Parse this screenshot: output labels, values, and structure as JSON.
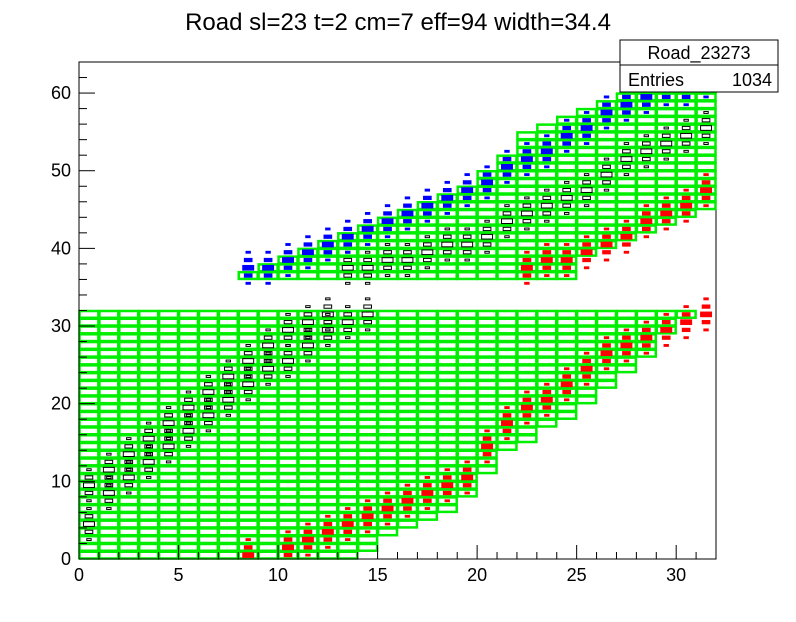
{
  "chart_data": {
    "type": "heatmap",
    "title": "Road sl=23 t=2 cm=7 eff=94 width=34.4",
    "xlim": [
      0,
      32
    ],
    "ylim": [
      0,
      64
    ],
    "x_ticks": [
      0,
      5,
      10,
      15,
      20,
      25,
      30
    ],
    "y_ticks": [
      0,
      10,
      20,
      30,
      40,
      50,
      60
    ],
    "x_tick_labels": [
      "0",
      "5",
      "10",
      "15",
      "20",
      "25",
      "30"
    ],
    "y_tick_labels": [
      "0",
      "10",
      "20",
      "30",
      "40",
      "50",
      "60"
    ],
    "legend": {
      "name": "Road_23273",
      "entries_label": "Entries",
      "entries_value": "1034",
      "position": "top-right"
    },
    "colors": {
      "road": "#00ee00",
      "hits": "#000000",
      "blue_hits": "#0000ff",
      "red_hits": "#ff0000"
    },
    "road_lower": {
      "ymin": 0,
      "ymax": 32,
      "row_extents": [
        [
          0,
          14
        ],
        [
          0,
          15
        ],
        [
          0,
          15
        ],
        [
          0,
          16
        ],
        [
          0,
          17
        ],
        [
          0,
          18
        ],
        [
          0,
          19
        ],
        [
          0,
          19
        ],
        [
          0,
          20
        ],
        [
          0,
          20
        ],
        [
          0,
          20
        ],
        [
          0,
          21
        ],
        [
          0,
          21
        ],
        [
          0,
          21
        ],
        [
          0,
          22
        ],
        [
          0,
          23
        ],
        [
          0,
          23
        ],
        [
          0,
          24
        ],
        [
          0,
          25
        ],
        [
          0,
          25
        ],
        [
          0,
          26
        ],
        [
          0,
          26
        ],
        [
          0,
          27
        ],
        [
          0,
          27
        ],
        [
          0,
          28
        ],
        [
          0,
          28
        ],
        [
          0,
          29
        ],
        [
          0,
          29
        ],
        [
          0,
          29
        ],
        [
          0,
          30
        ],
        [
          0,
          30
        ],
        [
          0,
          31
        ]
      ]
    },
    "road_upper": {
      "ymin": 36,
      "ymax": 61,
      "row_extents": [
        [
          8,
          25
        ],
        [
          9,
          25
        ],
        [
          10,
          25
        ],
        [
          11,
          26
        ],
        [
          12,
          27
        ],
        [
          13,
          28
        ],
        [
          14,
          29
        ],
        [
          15,
          30
        ],
        [
          16,
          31
        ],
        [
          17,
          32
        ],
        [
          18,
          32
        ],
        [
          19,
          32
        ],
        [
          20,
          32
        ],
        [
          20,
          32
        ],
        [
          21,
          32
        ],
        [
          21,
          32
        ],
        [
          22,
          32
        ],
        [
          22,
          32
        ],
        [
          22,
          32
        ],
        [
          23,
          32
        ],
        [
          24,
          32
        ],
        [
          25,
          32
        ],
        [
          26,
          32
        ],
        [
          27,
          32
        ],
        [
          28,
          32
        ]
      ]
    },
    "hit_bands": [
      {
        "name": "track-1",
        "type": "black",
        "points": [
          [
            0,
            4
          ],
          [
            1,
            8
          ],
          [
            2,
            10
          ],
          [
            3,
            12
          ],
          [
            4,
            14
          ],
          [
            5,
            16
          ],
          [
            6,
            18
          ],
          [
            7,
            20
          ],
          [
            8,
            22
          ],
          [
            9,
            24
          ],
          [
            10,
            25
          ],
          [
            11,
            27
          ],
          [
            12,
            29
          ],
          [
            13,
            30
          ],
          [
            14,
            31
          ]
        ]
      },
      {
        "name": "track-2",
        "type": "black",
        "points": [
          [
            0,
            9
          ],
          [
            1,
            11
          ],
          [
            2,
            13
          ],
          [
            3,
            15
          ],
          [
            4,
            17
          ],
          [
            5,
            19
          ],
          [
            6,
            21
          ],
          [
            7,
            23
          ],
          [
            8,
            25
          ],
          [
            9,
            27
          ],
          [
            10,
            29
          ],
          [
            11,
            30
          ],
          [
            12,
            31
          ]
        ]
      },
      {
        "name": "track-upper",
        "type": "black",
        "points": [
          [
            13,
            37
          ],
          [
            14,
            37
          ],
          [
            15,
            38
          ],
          [
            16,
            38
          ],
          [
            17,
            39
          ],
          [
            18,
            40
          ],
          [
            19,
            40
          ],
          [
            20,
            41
          ],
          [
            21,
            43
          ],
          [
            22,
            44
          ],
          [
            23,
            45
          ],
          [
            24,
            46
          ],
          [
            25,
            47
          ],
          [
            26,
            49
          ],
          [
            27,
            51
          ],
          [
            28,
            52
          ],
          [
            29,
            53
          ],
          [
            30,
            54
          ],
          [
            31,
            55
          ]
        ]
      },
      {
        "name": "track-blue",
        "type": "blue",
        "points": [
          [
            8,
            37
          ],
          [
            9,
            37
          ],
          [
            10,
            38
          ],
          [
            11,
            39
          ],
          [
            12,
            40
          ],
          [
            13,
            41
          ],
          [
            14,
            42
          ],
          [
            15,
            43
          ],
          [
            16,
            44
          ],
          [
            17,
            45
          ],
          [
            18,
            46
          ],
          [
            19,
            47
          ],
          [
            20,
            48
          ],
          [
            21,
            50
          ],
          [
            22,
            51
          ],
          [
            23,
            52
          ],
          [
            24,
            54
          ],
          [
            25,
            55
          ],
          [
            26,
            57
          ],
          [
            27,
            58
          ],
          [
            28,
            59
          ],
          [
            29,
            60
          ],
          [
            30,
            60
          ],
          [
            31,
            61
          ]
        ]
      },
      {
        "name": "track-red-lower",
        "type": "red",
        "points": [
          [
            8,
            0
          ],
          [
            10,
            1
          ],
          [
            11,
            2
          ],
          [
            12,
            3
          ],
          [
            13,
            4
          ],
          [
            14,
            5
          ],
          [
            15,
            6
          ],
          [
            16,
            7
          ],
          [
            17,
            8
          ],
          [
            18,
            9
          ],
          [
            19,
            10
          ],
          [
            20,
            14
          ],
          [
            21,
            17
          ],
          [
            22,
            19
          ],
          [
            23,
            20
          ],
          [
            24,
            22
          ],
          [
            25,
            24
          ],
          [
            26,
            26
          ],
          [
            27,
            27
          ],
          [
            28,
            28
          ],
          [
            29,
            29
          ],
          [
            30,
            30
          ],
          [
            31,
            31
          ]
        ]
      },
      {
        "name": "track-red-upper",
        "type": "red",
        "points": [
          [
            22,
            37
          ],
          [
            23,
            38
          ],
          [
            24,
            38
          ],
          [
            25,
            39
          ],
          [
            26,
            40
          ],
          [
            27,
            41
          ],
          [
            28,
            43
          ],
          [
            29,
            44
          ],
          [
            30,
            45
          ],
          [
            31,
            47
          ]
        ]
      }
    ]
  }
}
